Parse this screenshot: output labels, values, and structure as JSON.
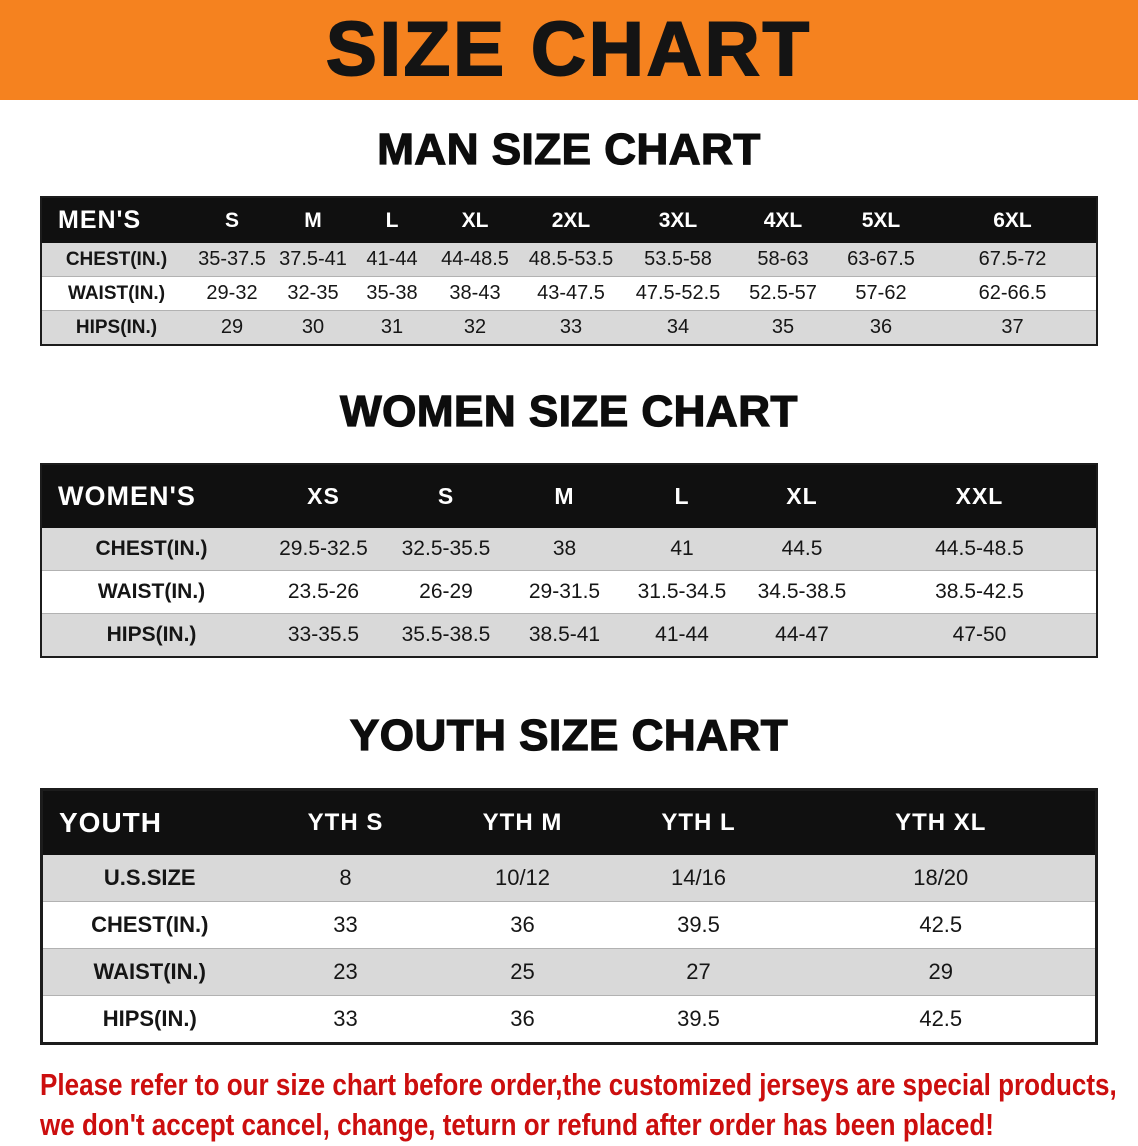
{
  "banner": {
    "title": "SIZE CHART",
    "bg_color": "#F5821F",
    "text_color": "#141414"
  },
  "colors": {
    "table_header_bg": "#101010",
    "table_header_text": "#FFFFFF",
    "row_stripe": "#D9D9D9",
    "footer_text": "#CC0E0E"
  },
  "sections": [
    {
      "id": "men",
      "heading": "MAN SIZE CHART",
      "table": {
        "header": [
          "MEN'S",
          "S",
          "M",
          "L",
          "XL",
          "2XL",
          "3XL",
          "4XL",
          "5XL",
          "6XL"
        ],
        "rows": [
          {
            "label": "CHEST(IN.)",
            "values": [
              "35-37.5",
              "37.5-41",
              "41-44",
              "44-48.5",
              "48.5-53.5",
              "53.5-58",
              "58-63",
              "63-67.5",
              "67.5-72"
            ]
          },
          {
            "label": "WAIST(IN.)",
            "values": [
              "29-32",
              "32-35",
              "35-38",
              "38-43",
              "43-47.5",
              "47.5-52.5",
              "52.5-57",
              "57-62",
              "62-66.5"
            ]
          },
          {
            "label": "HIPS(IN.)",
            "values": [
              "29",
              "30",
              "31",
              "32",
              "33",
              "34",
              "35",
              "36",
              "37"
            ]
          }
        ]
      }
    },
    {
      "id": "women",
      "heading": "WOMEN SIZE CHART",
      "table": {
        "header": [
          "WOMEN'S",
          "XS",
          "S",
          "M",
          "L",
          "XL",
          "XXL"
        ],
        "rows": [
          {
            "label": "CHEST(IN.)",
            "values": [
              "29.5-32.5",
              "32.5-35.5",
              "38",
              "41",
              "44.5",
              "44.5-48.5"
            ]
          },
          {
            "label": "WAIST(IN.)",
            "values": [
              "23.5-26",
              "26-29",
              "29-31.5",
              "31.5-34.5",
              "34.5-38.5",
              "38.5-42.5"
            ]
          },
          {
            "label": "HIPS(IN.)",
            "values": [
              "33-35.5",
              "35.5-38.5",
              "38.5-41",
              "41-44",
              "44-47",
              "47-50"
            ]
          }
        ]
      }
    },
    {
      "id": "youth",
      "heading": "YOUTH SIZE CHART",
      "table": {
        "header": [
          "YOUTH",
          "YTH S",
          "YTH M",
          "YTH L",
          "YTH XL"
        ],
        "rows": [
          {
            "label": "U.S.SIZE",
            "values": [
              "8",
              "10/12",
              "14/16",
              "18/20"
            ]
          },
          {
            "label": "CHEST(IN.)",
            "values": [
              "33",
              "36",
              "39.5",
              "42.5"
            ]
          },
          {
            "label": "WAIST(IN.)",
            "values": [
              "23",
              "25",
              "27",
              "29"
            ]
          },
          {
            "label": "HIPS(IN.)",
            "values": [
              "33",
              "36",
              "39.5",
              "42.5"
            ]
          }
        ]
      }
    }
  ],
  "footer": {
    "line1": "Please refer to our size chart before order,the customized jerseys are special products,",
    "line2": "we don't accept cancel, change, teturn or refund after order has been placed!"
  }
}
